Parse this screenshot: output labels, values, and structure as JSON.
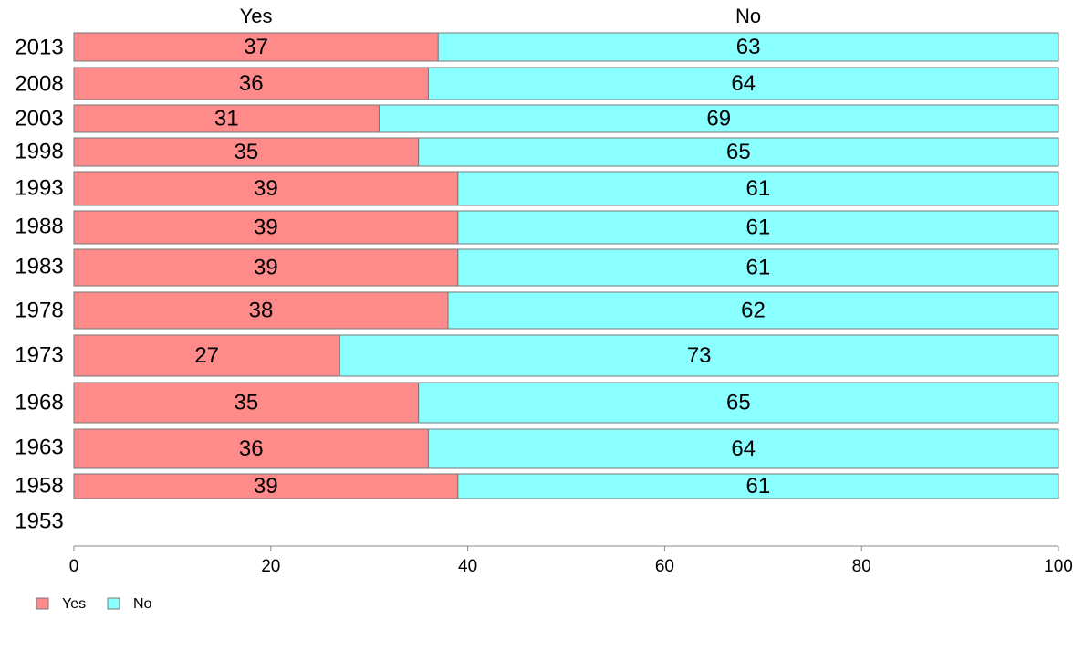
{
  "chart_data": {
    "type": "bar",
    "orientation": "horizontal",
    "stacked": true,
    "categories": [
      "2013",
      "2008",
      "2003",
      "1998",
      "1993",
      "1988",
      "1983",
      "1978",
      "1973",
      "1968",
      "1963",
      "1958",
      "1953"
    ],
    "series": [
      {
        "name": "Yes",
        "values": [
          37,
          36,
          31,
          35,
          39,
          39,
          39,
          38,
          27,
          35,
          36,
          39,
          null
        ]
      },
      {
        "name": "No",
        "values": [
          63,
          64,
          69,
          65,
          61,
          61,
          61,
          62,
          73,
          65,
          64,
          61,
          null
        ]
      }
    ],
    "xlim": [
      0,
      100
    ],
    "xticks": [
      0,
      20,
      40,
      60,
      80,
      100
    ],
    "column_headers": [
      "Yes",
      "No"
    ],
    "legend": {
      "position": "bottom-left",
      "entries": [
        "Yes",
        "No"
      ]
    },
    "colors": {
      "Yes": "#FF8A8A",
      "No": "#8AFFFF",
      "border": "#777777"
    },
    "title": "",
    "xlabel": "",
    "ylabel": ""
  }
}
